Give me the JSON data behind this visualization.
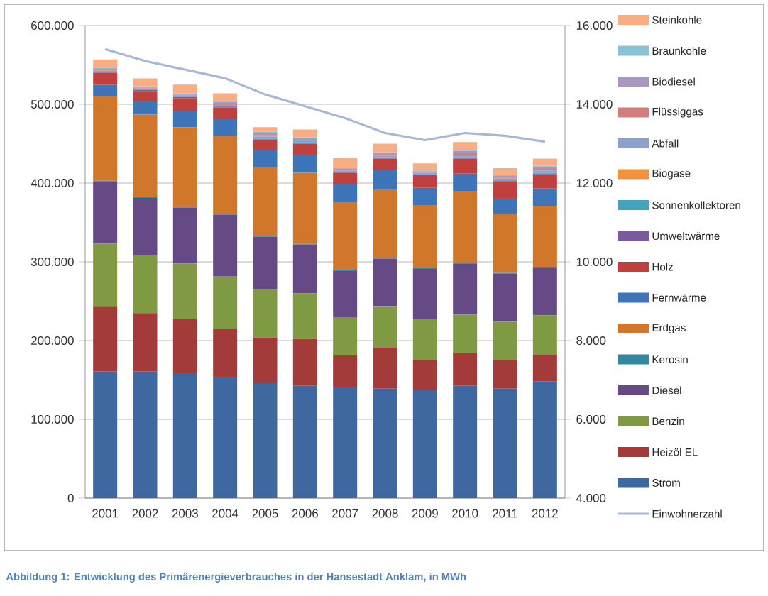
{
  "chart_data": {
    "type": "bar",
    "stacked": true,
    "legend": "right",
    "grid": "y",
    "categories": [
      "2001",
      "2002",
      "2003",
      "2004",
      "2005",
      "2006",
      "2007",
      "2008",
      "2009",
      "2010",
      "2011",
      "2012"
    ],
    "ylim": [
      0,
      600000
    ],
    "yticks": [
      0,
      {
        "value": 100000,
        "label": "100.000"
      },
      {
        "value": 200000,
        "label": "200.000"
      },
      {
        "value": 300000,
        "label": "300.000"
      },
      {
        "value": 400000,
        "label": "400.000"
      },
      {
        "value": 500000,
        "label": "500.000"
      },
      {
        "value": 600000,
        "label": "600.000"
      }
    ],
    "y2lim": [
      4000,
      16000
    ],
    "y2ticks": [
      {
        "value": 4000,
        "label": "4.000"
      },
      {
        "value": 6000,
        "label": "6.000"
      },
      {
        "value": 8000,
        "label": "8.000"
      },
      {
        "value": 10000,
        "label": "10.000"
      },
      {
        "value": 12000,
        "label": "12.000"
      },
      {
        "value": 14000,
        "label": "14.000"
      },
      {
        "value": 16000,
        "label": "16.000"
      }
    ],
    "series": [
      {
        "name": "Strom",
        "color": "#3f68a0",
        "values": [
          161000,
          161000,
          159000,
          154000,
          146000,
          143000,
          141000,
          139000,
          137000,
          143000,
          139000,
          148000
        ]
      },
      {
        "name": "Heizöl EL",
        "color": "#a33b3a",
        "values": [
          83000,
          74000,
          68000,
          61000,
          58000,
          59000,
          40000,
          52000,
          38000,
          41000,
          36000,
          34000
        ]
      },
      {
        "name": "Benzin",
        "color": "#7f9a43",
        "values": [
          79000,
          74000,
          71000,
          67000,
          61000,
          58000,
          48000,
          53000,
          52000,
          49000,
          49000,
          50000
        ]
      },
      {
        "name": "Diesel",
        "color": "#654a86",
        "values": [
          79000,
          72000,
          71000,
          78000,
          67000,
          62000,
          60000,
          60000,
          64000,
          65000,
          61000,
          60000
        ]
      },
      {
        "name": "Kerosin",
        "color": "#33879f",
        "values": [
          1000,
          1000,
          1000,
          1000,
          1000,
          1000,
          1000,
          1000,
          1000,
          1000,
          1000,
          1000
        ]
      },
      {
        "name": "Erdgas",
        "color": "#d0772b",
        "values": [
          107000,
          105000,
          101000,
          99000,
          87000,
          90000,
          86000,
          87000,
          80000,
          91000,
          75000,
          78000
        ]
      },
      {
        "name": "Fernwärme",
        "color": "#3e75b8",
        "values": [
          15000,
          17000,
          21000,
          21000,
          22000,
          23000,
          23000,
          25000,
          22000,
          22000,
          20000,
          22000
        ]
      },
      {
        "name": "Holz",
        "color": "#c0403d",
        "values": [
          15000,
          13000,
          16000,
          15000,
          12000,
          14000,
          14000,
          14000,
          16000,
          19000,
          21000,
          18000
        ]
      },
      {
        "name": "Umweltwärme",
        "color": "#7b5a9f",
        "values": [
          1000,
          1000,
          1000,
          1000,
          1000,
          1000,
          1000,
          1000,
          1000,
          1000,
          1000,
          1000
        ]
      },
      {
        "name": "Sonnenkollektoren",
        "color": "#45a2bf",
        "values": [
          0,
          0,
          0,
          1000,
          1000,
          1000,
          0,
          1000,
          0,
          1000,
          1000,
          1000
        ]
      },
      {
        "name": "Biogase",
        "color": "#f0923e",
        "values": [
          0,
          0,
          0,
          0,
          0,
          0,
          0,
          0,
          0,
          0,
          0,
          0
        ]
      },
      {
        "name": "Abfall",
        "color": "#8ba2cc",
        "values": [
          2000,
          2000,
          2000,
          2000,
          3000,
          2000,
          2000,
          2000,
          2000,
          3000,
          2000,
          3000
        ]
      },
      {
        "name": "Flüssiggas",
        "color": "#d37e7d",
        "values": [
          1000,
          1000,
          1000,
          1000,
          2000,
          1000,
          1000,
          1000,
          1000,
          2000,
          1000,
          2000
        ]
      },
      {
        "name": "Biodiesel",
        "color": "#a898c0",
        "values": [
          1000,
          1000,
          1000,
          2000,
          3000,
          2000,
          1000,
          2000,
          1000,
          3000,
          2000,
          3000
        ]
      },
      {
        "name": "Braunkohle",
        "color": "#8ac2d6",
        "values": [
          1000,
          1000,
          1000,
          1000,
          1000,
          1000,
          1000,
          1000,
          1000,
          1000,
          1000,
          1000
        ]
      },
      {
        "name": "Steinkohle",
        "color": "#f8ad82",
        "values": [
          11000,
          10000,
          11000,
          10000,
          6000,
          10000,
          13000,
          11000,
          9000,
          10000,
          9000,
          9000
        ]
      },
      {
        "name": "Einwohnerzahl",
        "type": "line",
        "axis": "y2",
        "color": "#a7b8d6",
        "values": [
          15400,
          15100,
          14880,
          14660,
          14250,
          13950,
          13650,
          13270,
          13090,
          13270,
          13200,
          13050
        ]
      }
    ],
    "annotations": [
      "Abbildung 1: Entwicklung des Primärenergieverbrauches in der Hansestadt Anklam, in MWh"
    ]
  }
}
